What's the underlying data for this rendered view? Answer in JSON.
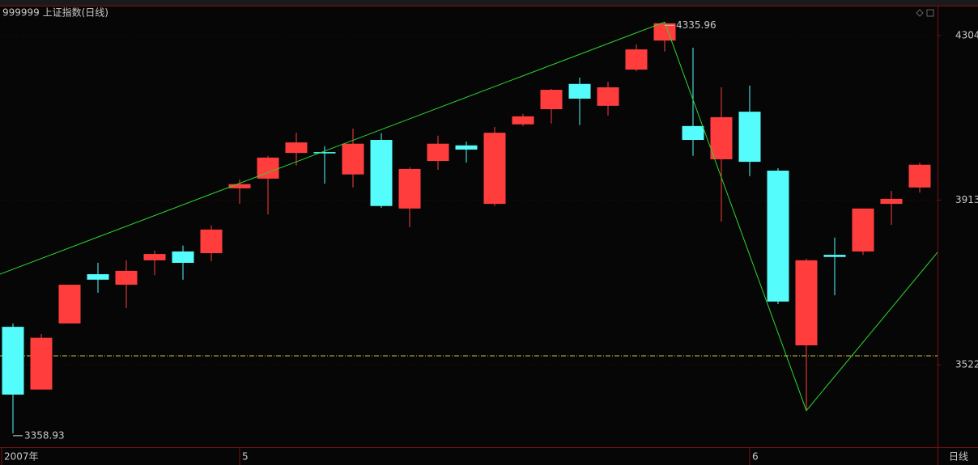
{
  "chart_data": {
    "type": "candlestick",
    "title": "999999 上证指数(日线)",
    "period_label": "日线",
    "categories": [
      "2007年",
      null,
      null,
      null,
      null,
      null,
      null,
      null,
      "5",
      null,
      null,
      null,
      null,
      null,
      null,
      null,
      null,
      null,
      null,
      null,
      null,
      null,
      null,
      null,
      null,
      null,
      "6",
      null,
      null,
      null,
      null,
      null,
      null
    ],
    "series": [
      {
        "open": [
          3612,
          3463,
          3620,
          3737,
          3712,
          3770,
          3791,
          3787,
          3941,
          3964,
          4025,
          4027,
          3974,
          4056,
          3893,
          4006,
          4043,
          3904,
          4093,
          4129,
          4189,
          4137,
          4223,
          4292,
          4089,
          4010,
          4123,
          3983,
          3568,
          3783,
          3791,
          3904,
          3943
        ],
        "high": [
          3620,
          3595,
          3712,
          3764,
          3770,
          3793,
          3805,
          3853,
          3962,
          4018,
          4073,
          4041,
          4083,
          4072,
          3991,
          4066,
          4052,
          4087,
          4118,
          4177,
          4204,
          4194,
          4283,
          4335.96,
          4275,
          4181,
          4185,
          3989,
          3774,
          3824,
          3893,
          3935,
          4002
        ],
        "low": [
          3358.93,
          3463,
          3620,
          3693,
          3657,
          3735,
          3724,
          3768,
          3904,
          3879,
          3995,
          3952,
          3943,
          3895,
          3849,
          3985,
          4002,
          3899,
          4089,
          4095,
          4091,
          4114,
          4219,
          4266,
          4018,
          3862,
          3970,
          3666,
          3413,
          3687,
          3783,
          3854,
          3931
        ],
        "close": [
          3451,
          3586,
          3712,
          3724,
          3745,
          3785,
          3764,
          3843,
          3951,
          4014,
          4050,
          4024,
          4047,
          3899,
          3987,
          4047,
          4033,
          4073,
          4112,
          4175,
          4154,
          4181,
          4271,
          4333,
          4056,
          4110,
          4004,
          3672,
          3770,
          3778,
          3893,
          3916,
          3997
        ]
      }
    ],
    "up_color": "#ff3d3d",
    "down_color": "#54fcfc",
    "ylim": [
      3326,
      4373
    ],
    "yticks": [
      3522,
      3913,
      4304
    ],
    "grid": true,
    "trend_line": {
      "x": [
        -0.46,
        23,
        28,
        32.63
      ],
      "values": [
        3737,
        4335.96,
        3413,
        3789
      ],
      "color": "#2ed62e"
    },
    "reference_line": {
      "value": 3543,
      "color": "#d8c040"
    },
    "label_points": [
      "chart_data.series.0.low.0",
      "chart_data.series.0.high.23"
    ]
  }
}
